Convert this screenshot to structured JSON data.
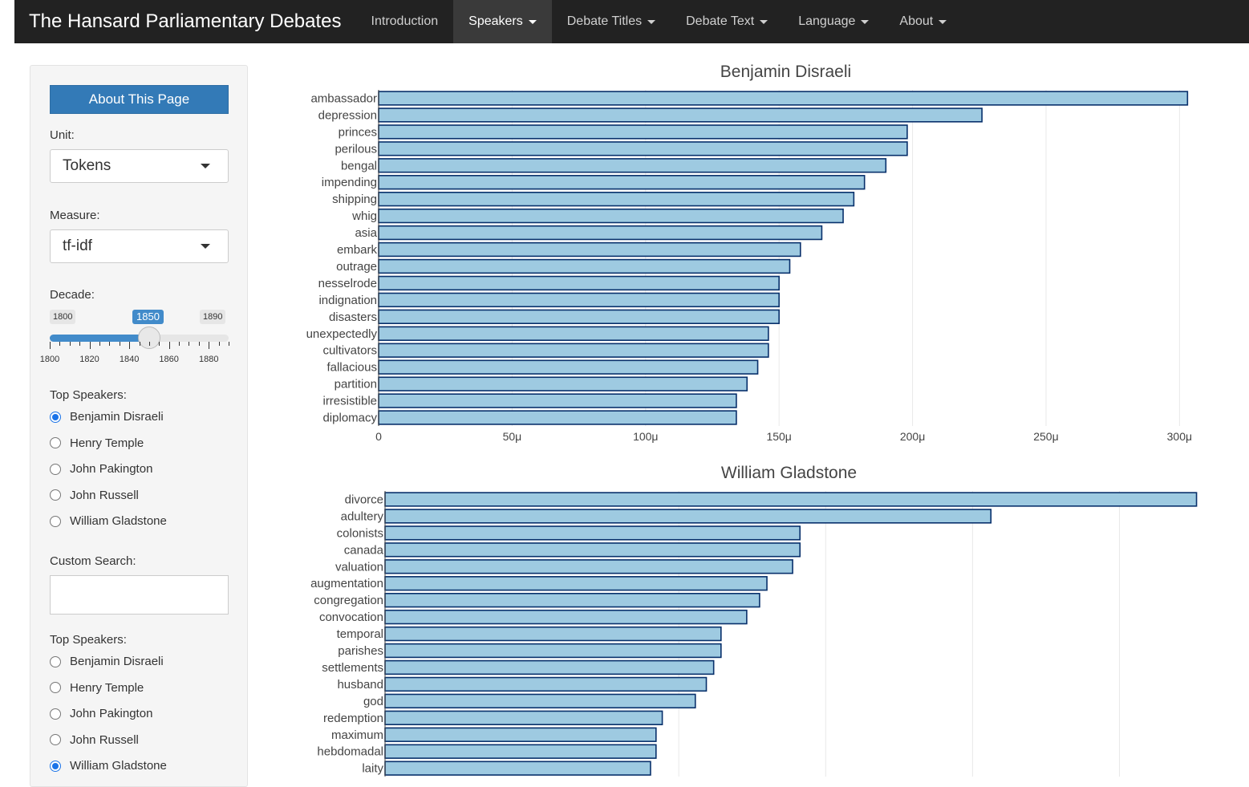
{
  "navbar": {
    "brand": "The Hansard Parliamentary Debates",
    "items": [
      {
        "label": "Introduction",
        "dropdown": false,
        "active": false
      },
      {
        "label": "Speakers",
        "dropdown": true,
        "active": true
      },
      {
        "label": "Debate Titles",
        "dropdown": true,
        "active": false
      },
      {
        "label": "Debate Text",
        "dropdown": true,
        "active": false
      },
      {
        "label": "Language",
        "dropdown": true,
        "active": false
      },
      {
        "label": "About",
        "dropdown": true,
        "active": false
      }
    ]
  },
  "sidebar": {
    "about_button": "About This Page",
    "unit_label": "Unit:",
    "unit_value": "Tokens",
    "measure_label": "Measure:",
    "measure_value": "tf-idf",
    "decade_label": "Decade:",
    "decade_slider": {
      "min": "1800",
      "max": "1890",
      "current": "1850",
      "min_value": 1800,
      "max_value": 1890,
      "value": 1850,
      "tick_labels": [
        "1800",
        "1820",
        "1840",
        "1860",
        "1880"
      ]
    },
    "top_speakers_label_1": "Top Speakers:",
    "speakers_1": [
      {
        "name": "Benjamin Disraeli",
        "checked": true
      },
      {
        "name": "Henry Temple",
        "checked": false
      },
      {
        "name": "John Pakington",
        "checked": false
      },
      {
        "name": "John Russell",
        "checked": false
      },
      {
        "name": "William Gladstone",
        "checked": false
      }
    ],
    "custom_search_label": "Custom Search:",
    "custom_search_value": "",
    "top_speakers_label_2": "Top Speakers:",
    "speakers_2": [
      {
        "name": "Benjamin Disraeli",
        "checked": false
      },
      {
        "name": "Henry Temple",
        "checked": false
      },
      {
        "name": "John Pakington",
        "checked": false
      },
      {
        "name": "John Russell",
        "checked": false
      },
      {
        "name": "William Gladstone",
        "checked": true
      }
    ]
  },
  "colors": {
    "bar_fill": "#9ecae1",
    "bar_stroke": "#08306b",
    "accent": "#337ab7"
  },
  "chart_data": [
    {
      "type": "bar",
      "orientation": "horizontal",
      "title": "Benjamin Disraeli",
      "categories": [
        "ambassador",
        "depression",
        "princes",
        "perilous",
        "bengal",
        "impending",
        "shipping",
        "whig",
        "asia",
        "embark",
        "outrage",
        "nesselrode",
        "indignation",
        "disasters",
        "unexpectedly",
        "cultivators",
        "fallacious",
        "partition",
        "irresistible",
        "diplomacy"
      ],
      "values": [
        0.000303,
        0.000226,
        0.000198,
        0.000198,
        0.00019,
        0.000182,
        0.000178,
        0.000174,
        0.000166,
        0.000158,
        0.000154,
        0.00015,
        0.00015,
        0.00015,
        0.000146,
        0.000146,
        0.000142,
        0.000138,
        0.000134,
        0.000134
      ],
      "xlim": [
        0,
        0.000305
      ],
      "xticks": [
        0,
        5e-05,
        0.0001,
        0.00015,
        0.0002,
        0.00025,
        0.0003
      ],
      "xtick_labels": [
        "0",
        "50μ",
        "100μ",
        "150μ",
        "200μ",
        "250μ",
        "300μ"
      ],
      "grid": true
    },
    {
      "type": "bar",
      "orientation": "horizontal",
      "title": "William Gladstone",
      "categories": [
        "divorce",
        "adultery",
        "colonists",
        "canada",
        "valuation",
        "augmentation",
        "congregation",
        "convocation",
        "temporal",
        "parishes",
        "settlements",
        "husband",
        "god",
        "redemption",
        "maximum",
        "hebdomadal",
        "laity"
      ],
      "values": [
        0.000221,
        0.000165,
        0.000113,
        0.000113,
        0.000111,
        0.000104,
        0.000102,
        9.85e-05,
        9.15e-05,
        9.15e-05,
        8.95e-05,
        8.75e-05,
        8.45e-05,
        7.55e-05,
        7.38e-05,
        7.38e-05,
        7.23e-05
      ],
      "xlim": [
        0,
        0.00022
      ],
      "xticks": [
        8e-05,
        0.00012,
        0.00016,
        0.0002
      ],
      "grid": true
    }
  ]
}
